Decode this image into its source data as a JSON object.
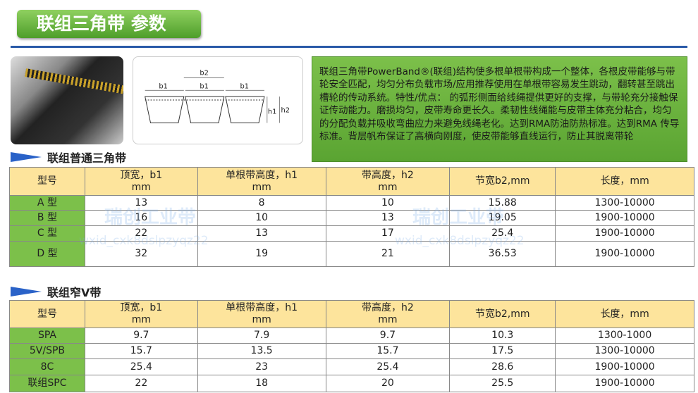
{
  "title": "联组三角带 参数",
  "diagram": {
    "labels": [
      "b2",
      "b1",
      "b1",
      "b1",
      "h1",
      "h2"
    ]
  },
  "description": "联组三角带PowerBand®(联组)结构使多根单根带构成一个整体，各根皮带能够与带轮安全匹配，均匀分布负载市场/应用推荐使用在单根带容易发生跳动，翻转甚至跳出槽轮的传动系统。特性/优点：      的弧形侧面给线绳提供更好的支撑，与带轮充分接触保证传动能力。磨损均匀，皮带寿命更长久。柔韧性线绳能与皮带主体充分粘合，均匀的分配负载并吸收弯曲应力来避免线绳老化。达到RMA防油防热标准。达到RMA      传导标准。背层帆布保证了高横向刚度，使皮带能够直线运行，防止其脱离带轮",
  "watermark": {
    "text": "瑞创工业带",
    "id": "wxid_cxk8dslpzyqz22"
  },
  "headers": [
    "型号",
    "顶宽，b1\nmm",
    "单根带高度，h1\nmm",
    "带高度，h2\nmm",
    "节宽b2,mm",
    "长度，mm"
  ],
  "tables": [
    {
      "heading": "联组普通三角带",
      "rows": [
        [
          "A 型",
          "13",
          "8",
          "10",
          "15.88",
          "1300-10000"
        ],
        [
          "B 型",
          "16",
          "10",
          "13",
          "19.05",
          "1900-10000"
        ],
        [
          "C 型",
          "22",
          "13",
          "17",
          "25.4",
          "1900-10000"
        ],
        [
          "D 型",
          "32",
          "19",
          "21",
          "36.53",
          "1900-10000"
        ]
      ]
    },
    {
      "heading": "联组窄V带",
      "rows": [
        [
          "SPA",
          "9.7",
          "7.9",
          "9.7",
          "10.3",
          "1300-1000"
        ],
        [
          "5V/SPB",
          "15.7",
          "13.5",
          "15.7",
          "17.5",
          "1300-10000"
        ],
        [
          "8C",
          "25.4",
          "23",
          "25.4",
          "28.6",
          "1900-10000"
        ],
        [
          "联组SPC",
          "22",
          "18",
          "20",
          "25.5",
          "1900-10000"
        ]
      ]
    }
  ],
  "colors": {
    "title_green": "#5aa432",
    "rule_blue": "#2a5aa8",
    "header_yellow": "#fde49c",
    "first_col_green": "#7cc04a"
  }
}
